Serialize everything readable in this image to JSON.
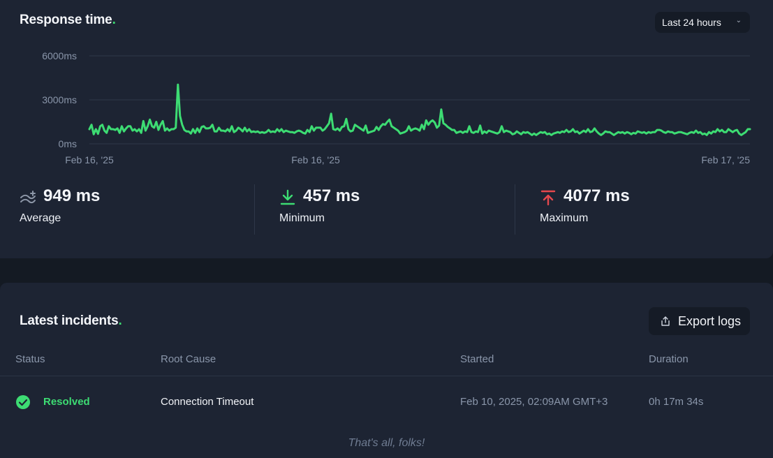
{
  "response": {
    "title": "Response time",
    "title_dot": ".",
    "range_label": "Last 24 hours",
    "stats": [
      {
        "value": "949 ms",
        "label": "Average",
        "icon": "trend-average-icon"
      },
      {
        "value": "457 ms",
        "label": "Minimum",
        "icon": "arrow-down-to-line-icon"
      },
      {
        "value": "4077 ms",
        "label": "Maximum",
        "icon": "arrow-up-to-line-icon"
      }
    ]
  },
  "chart_data": {
    "type": "line",
    "title": "",
    "xlabel": "",
    "ylabel": "",
    "yticks": [
      "0ms",
      "3000ms",
      "6000ms"
    ],
    "ylim": [
      0,
      6000
    ],
    "xtick_labels": [
      "Feb 16, '25",
      "Feb 16, '25",
      "Feb 17, '25"
    ],
    "grid": true,
    "line_color": "#3ddc73",
    "series": [
      {
        "values": [
          1000,
          1300,
          650,
          1000,
          680,
          1200,
          1300,
          900,
          750,
          1200,
          1000,
          1000,
          950,
          1050,
          750,
          1200,
          850,
          1050,
          1200,
          1200,
          900,
          1000,
          850,
          1000,
          750,
          1550,
          900,
          1200,
          1650,
          1200,
          1100,
          1500,
          950,
          1300,
          1550,
          900,
          1050,
          900,
          1000,
          1000,
          1100,
          4040,
          1900,
          1300,
          950,
          850,
          850,
          700,
          1000,
          750,
          1050,
          800,
          1150,
          1200,
          1050,
          1050,
          1100,
          1300,
          850,
          850,
          1100,
          900,
          900,
          850,
          1000,
          850,
          1200,
          800,
          900,
          1100,
          1000,
          850,
          1100,
          850,
          1000,
          800,
          850,
          800,
          850,
          750,
          800,
          750,
          800,
          950,
          800,
          850,
          800,
          1000,
          850,
          1000,
          800,
          900,
          850,
          800,
          800,
          750,
          850,
          900,
          850,
          750,
          700,
          950,
          800,
          1200,
          900,
          1100,
          1100,
          1100,
          900,
          1000,
          1200,
          1400,
          2050,
          1000,
          950,
          1050,
          900,
          1150,
          1200,
          1700,
          1000,
          850,
          900,
          1300,
          1200,
          1100,
          1000,
          900,
          1250,
          750,
          800,
          850,
          900,
          1150,
          950,
          1200,
          1350,
          1300,
          1500,
          1650,
          1200,
          1100,
          1000,
          900,
          700,
          750,
          800,
          900,
          1200,
          900,
          1000,
          1050,
          1000,
          900,
          1300,
          1000,
          1600,
          1300,
          1500,
          1600,
          1450,
          1100,
          1250,
          2350,
          1400,
          1300,
          1150,
          1050,
          950,
          950,
          750,
          800,
          850,
          750,
          850,
          800,
          1200,
          800,
          750,
          850,
          800,
          1250,
          700,
          850,
          750,
          900,
          850,
          800,
          750,
          700,
          800,
          1200,
          800,
          900,
          850,
          800,
          650,
          700,
          850,
          750,
          650,
          800,
          750,
          800,
          700,
          600,
          700,
          600,
          700,
          800,
          750,
          800,
          650,
          700,
          600,
          700,
          750,
          800,
          750,
          850,
          800,
          950,
          800,
          850,
          1000,
          800,
          850,
          700,
          800,
          900,
          800,
          1000,
          800,
          850,
          1050,
          850,
          700,
          600,
          700,
          850,
          800,
          800,
          700,
          600,
          700,
          800,
          750,
          800,
          700,
          800,
          750,
          650,
          750,
          700,
          850,
          800,
          750,
          800,
          700,
          800,
          750,
          800,
          800,
          950,
          950,
          900,
          800,
          750,
          850,
          800,
          800,
          700,
          750,
          800,
          800,
          750,
          700,
          650,
          750,
          800,
          750,
          900,
          750,
          800,
          650,
          700,
          600,
          800,
          700,
          850,
          800,
          1000,
          850,
          950,
          800,
          800,
          1000,
          900,
          800,
          900,
          950,
          700,
          600,
          700,
          800,
          1000,
          1000
        ]
      }
    ]
  },
  "incidents": {
    "title": "Latest incidents",
    "title_dot": ".",
    "export_label": "Export logs",
    "columns": [
      "Status",
      "Root Cause",
      "Started",
      "Duration"
    ],
    "rows": [
      {
        "status": "Resolved",
        "root_cause": "Connection Timeout",
        "started": "Feb 10, 2025, 02:09AM GMT+3",
        "duration": "0h 17m 34s"
      }
    ],
    "footer": "That's all, folks!"
  },
  "colors": {
    "accent_green": "#3ddc73",
    "max_red": "#e5484d",
    "card_bg": "#1d2433",
    "page_bg": "#141a23"
  }
}
